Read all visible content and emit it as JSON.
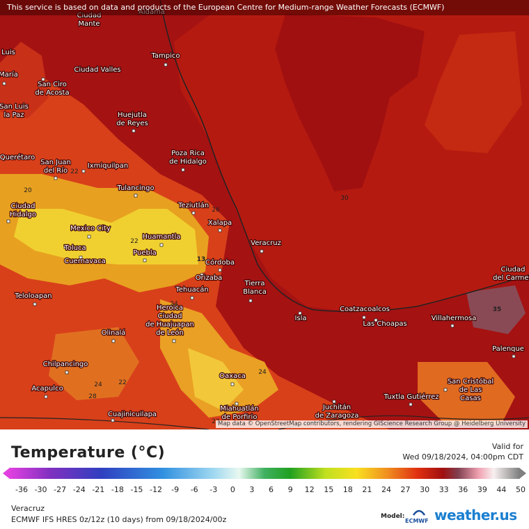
{
  "header": {
    "notice": "This service is based on data and products of the European Centre for Medium-range Weather Forecasts (ECMWF)"
  },
  "map": {
    "attribution": "Map data © OpenStreetMap contributors, rendering GIScience Research Group @ Heidelberg University",
    "cities": [
      {
        "lines": [
          "Ciudad",
          "Mante"
        ]
      },
      {
        "lines": [
          "Aldama"
        ]
      },
      {
        "lines": [
          "Tampico"
        ]
      },
      {
        "lines": [
          "Luis"
        ]
      },
      {
        "lines": [
          "María"
        ]
      },
      {
        "lines": [
          "Ciudad Valles"
        ]
      },
      {
        "lines": [
          "San Ciro",
          "de Acosta"
        ]
      },
      {
        "lines": [
          "San Luis",
          "la Paz"
        ]
      },
      {
        "lines": [
          "Huejutla",
          "de Reyes"
        ]
      },
      {
        "lines": [
          "Poza Rica",
          "de Hidalgo"
        ]
      },
      {
        "lines": [
          "Querétaro"
        ]
      },
      {
        "lines": [
          "San Juan",
          "del Río"
        ]
      },
      {
        "lines": [
          "Ixmiquilpan"
        ]
      },
      {
        "lines": [
          "Tulancingo"
        ]
      },
      {
        "lines": [
          "Ciudad",
          "Hidalgo"
        ]
      },
      {
        "lines": [
          "Teziutlán"
        ]
      },
      {
        "lines": [
          "Xalapa"
        ]
      },
      {
        "lines": [
          "Mexico City"
        ]
      },
      {
        "lines": [
          "Huamantla"
        ]
      },
      {
        "lines": [
          "Veracruz"
        ]
      },
      {
        "lines": [
          "Toluca"
        ]
      },
      {
        "lines": [
          "Puebla"
        ]
      },
      {
        "lines": [
          "Cuernavaca"
        ]
      },
      {
        "lines": [
          "Córdoba"
        ]
      },
      {
        "lines": [
          "Orizaba"
        ]
      },
      {
        "lines": [
          "Tierra",
          "Blanca"
        ]
      },
      {
        "lines": [
          "Tehuacán"
        ]
      },
      {
        "lines": [
          "Teloloapan"
        ]
      },
      {
        "lines": [
          "Coatzacoalcos"
        ]
      },
      {
        "lines": [
          "Heroica",
          "Ciudad",
          "de Huajuapan",
          "de León"
        ]
      },
      {
        "lines": [
          "Villahermosa"
        ]
      },
      {
        "lines": [
          "Isla"
        ]
      },
      {
        "lines": [
          "Las Choapas"
        ]
      },
      {
        "lines": [
          "Olinalá"
        ]
      },
      {
        "lines": [
          "Chilpancingo"
        ]
      },
      {
        "lines": [
          "Palenque"
        ]
      },
      {
        "lines": [
          "Oaxaca"
        ]
      },
      {
        "lines": [
          "San Cristóbal",
          "de Las",
          "Casas"
        ]
      },
      {
        "lines": [
          "Acapulco"
        ]
      },
      {
        "lines": [
          "Tuxtla Gutiérrez"
        ]
      },
      {
        "lines": [
          "Juchitán",
          "de Zaragoza"
        ]
      },
      {
        "lines": [
          "Miahuatlán",
          "de Porfirio"
        ]
      },
      {
        "lines": [
          "Cuajinicuilapa"
        ]
      },
      {
        "lines": [
          "Ciudad",
          "del Carmen"
        ]
      }
    ],
    "contour_labels": [
      30,
      26,
      22,
      24,
      24,
      22,
      24,
      28,
      22,
      20,
      22,
      13,
      35
    ]
  },
  "legend": {
    "title": "Temperature (°C)",
    "valid_label": "Valid for",
    "valid_time": "Wed 09/18/2024, 04:00pm CDT",
    "ticks": [
      -36,
      -30,
      -27,
      -24,
      -21,
      -18,
      -15,
      -12,
      -9,
      -6,
      -3,
      0,
      3,
      6,
      9,
      12,
      15,
      18,
      21,
      24,
      27,
      30,
      33,
      36,
      39,
      44,
      50
    ]
  },
  "footer": {
    "location": "Veracruz",
    "model_run": "ECMWF IFS HRES 0z/12z (10 days) from 09/18/2024/00z",
    "model_label": "Model:",
    "model_name": "ECMWF",
    "brand": "weather.us"
  }
}
